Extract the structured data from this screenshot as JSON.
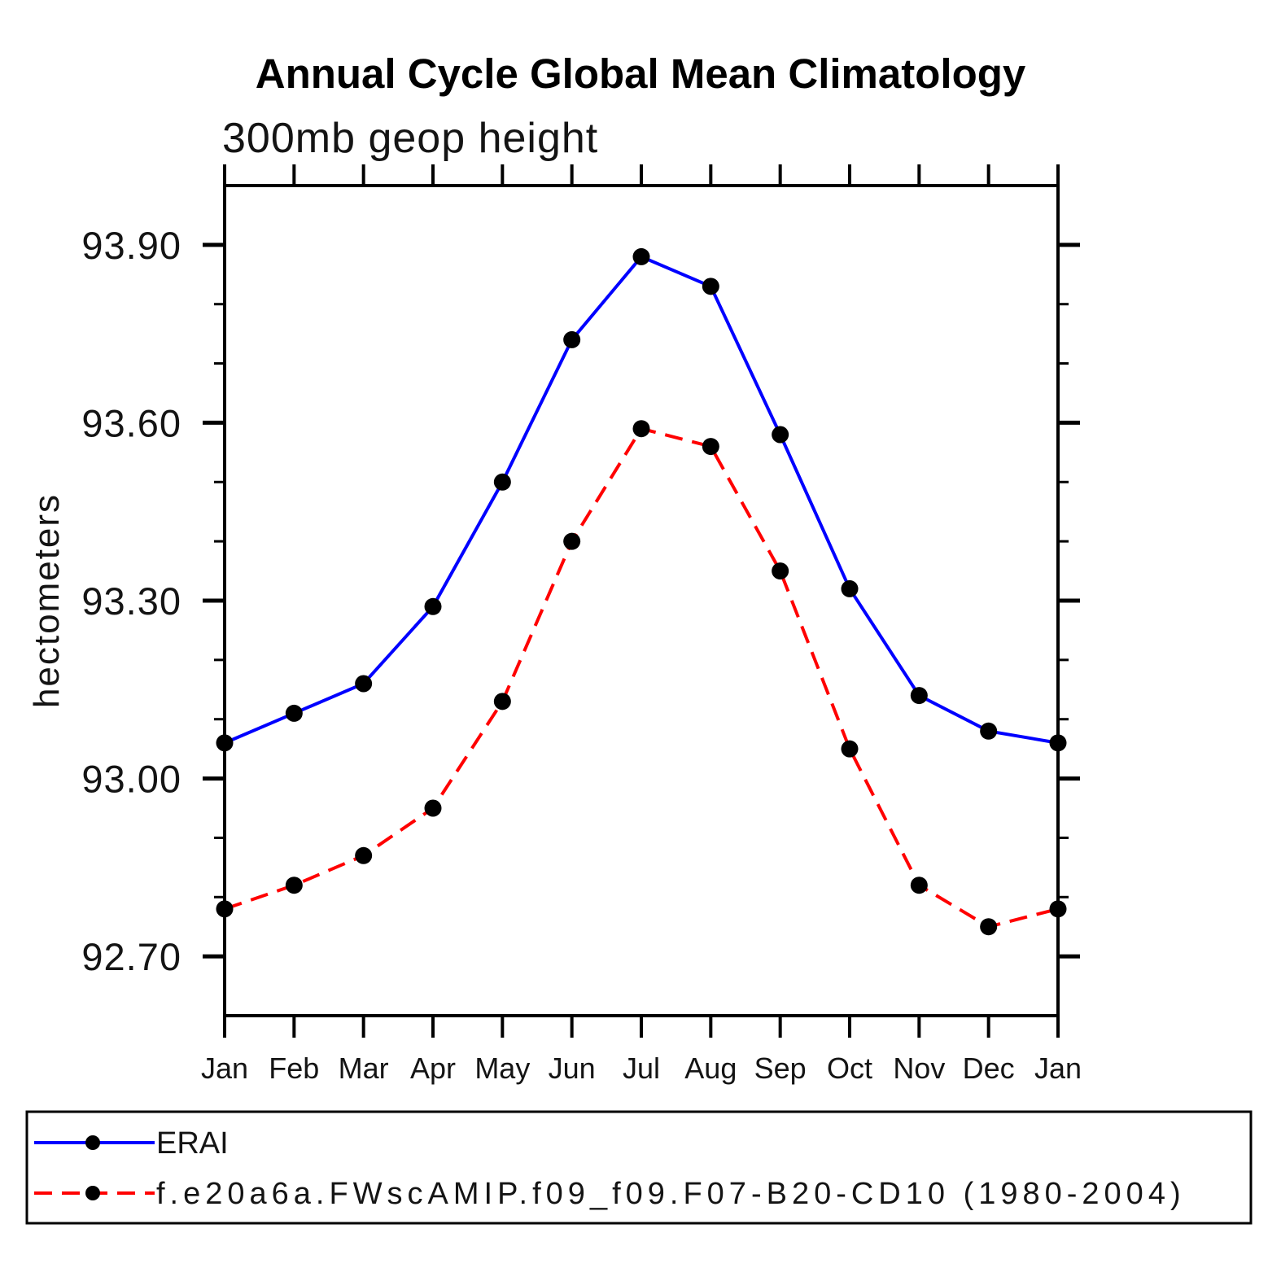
{
  "chart_data": {
    "type": "line",
    "title": "Annual Cycle Global Mean Climatology",
    "subtitle": "300mb geop height",
    "ylabel": "hectometers",
    "xlabel": "",
    "categories": [
      "Jan",
      "Feb",
      "Mar",
      "Apr",
      "May",
      "Jun",
      "Jul",
      "Aug",
      "Sep",
      "Oct",
      "Nov",
      "Dec",
      "Jan"
    ],
    "series": [
      {
        "name": "ERAI",
        "color": "#0000ff",
        "line_style": "solid",
        "marker": "filled-circle",
        "marker_color": "#000000",
        "values": [
          93.06,
          93.11,
          93.16,
          93.29,
          93.5,
          93.74,
          93.88,
          93.83,
          93.58,
          93.32,
          93.14,
          93.08,
          93.06
        ]
      },
      {
        "name": "f.e20a6a.FWscAMIP.f09_f09.F07-B20-CD10 (1980-2004)",
        "color": "#ff0000",
        "line_style": "dashed",
        "marker": "filled-circle",
        "marker_color": "#000000",
        "values": [
          92.78,
          92.82,
          92.87,
          92.95,
          93.13,
          93.4,
          93.59,
          93.56,
          93.35,
          93.05,
          92.82,
          92.75,
          92.78
        ]
      }
    ],
    "ylim": [
      92.6,
      94.0
    ],
    "ytick_major": [
      92.7,
      93.0,
      93.3,
      93.6,
      93.9
    ],
    "ytick_major_labels": [
      "92.70",
      "93.00",
      "93.30",
      "93.60",
      "93.90"
    ],
    "ytick_minor_step": 0.1,
    "grid": false,
    "legend_position": "bottom"
  }
}
